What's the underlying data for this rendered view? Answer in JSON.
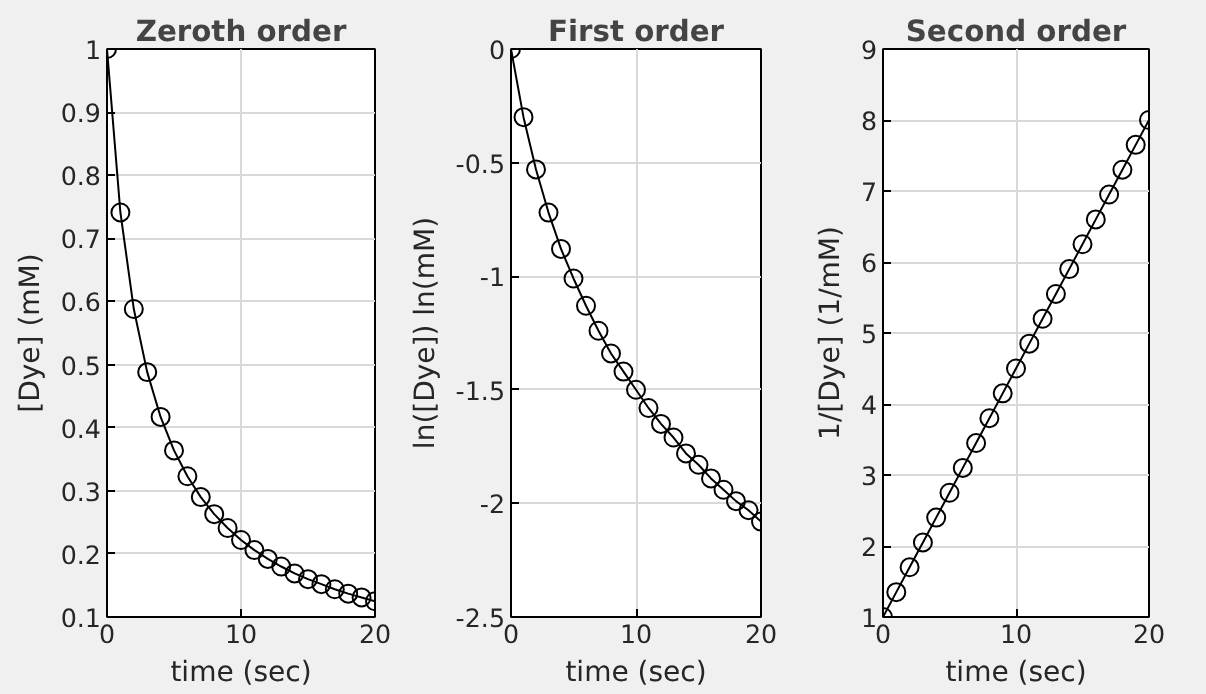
{
  "chart_data": [
    {
      "type": "line",
      "title": "Zeroth order",
      "xlabel": "time (sec)",
      "ylabel": "[Dye] (mM)",
      "x": [
        0,
        1,
        2,
        3,
        4,
        5,
        6,
        7,
        8,
        9,
        10,
        11,
        12,
        13,
        14,
        15,
        16,
        17,
        18,
        19,
        20
      ],
      "series": [
        {
          "color": "#000000",
          "values": [
            1.0,
            0.741,
            0.588,
            0.488,
            0.417,
            0.364,
            0.323,
            0.29,
            0.263,
            0.241,
            0.222,
            0.206,
            0.192,
            0.18,
            0.169,
            0.16,
            0.152,
            0.144,
            0.137,
            0.131,
            0.125
          ]
        }
      ],
      "xlim": [
        0,
        20
      ],
      "xticks": [
        0,
        10,
        20
      ],
      "ylim": [
        0.1,
        1
      ],
      "yticks": [
        0.1,
        0.2,
        0.3,
        0.4,
        0.5,
        0.6,
        0.7,
        0.8,
        0.9,
        1
      ],
      "grid": true,
      "marker": "circle",
      "line_style": "solid"
    },
    {
      "type": "line",
      "title": "First order",
      "xlabel": "time (sec)",
      "ylabel": "ln([Dye]) ln(mM)",
      "x": [
        0,
        1,
        2,
        3,
        4,
        5,
        6,
        7,
        8,
        9,
        10,
        11,
        12,
        13,
        14,
        15,
        16,
        17,
        18,
        19,
        20
      ],
      "series": [
        {
          "color": "#000000",
          "values": [
            0,
            -0.3,
            -0.53,
            -0.72,
            -0.88,
            -1.01,
            -1.13,
            -1.24,
            -1.34,
            -1.42,
            -1.5,
            -1.58,
            -1.65,
            -1.71,
            -1.78,
            -1.83,
            -1.89,
            -1.94,
            -1.99,
            -2.03,
            -2.08
          ]
        }
      ],
      "xlim": [
        0,
        20
      ],
      "xticks": [
        0,
        10,
        20
      ],
      "ylim": [
        -2.5,
        0
      ],
      "yticks": [
        -2.5,
        -2,
        -1.5,
        -1,
        -0.5,
        0
      ],
      "grid": true,
      "marker": "circle",
      "line_style": "solid"
    },
    {
      "type": "line",
      "title": "Second order",
      "xlabel": "time (sec)",
      "ylabel": "1/[Dye] (1/mM)",
      "x": [
        0,
        1,
        2,
        3,
        4,
        5,
        6,
        7,
        8,
        9,
        10,
        11,
        12,
        13,
        14,
        15,
        16,
        17,
        18,
        19,
        20
      ],
      "series": [
        {
          "color": "#000000",
          "values": [
            1,
            1.35,
            1.7,
            2.05,
            2.4,
            2.75,
            3.1,
            3.45,
            3.8,
            4.15,
            4.5,
            4.85,
            5.2,
            5.55,
            5.9,
            6.25,
            6.6,
            6.95,
            7.3,
            7.65,
            8.0
          ]
        }
      ],
      "xlim": [
        0,
        20
      ],
      "xticks": [
        0,
        10,
        20
      ],
      "ylim": [
        1,
        9
      ],
      "yticks": [
        1,
        2,
        3,
        4,
        5,
        6,
        7,
        8,
        9
      ],
      "grid": true,
      "marker": "circle",
      "line_style": "solid"
    }
  ]
}
